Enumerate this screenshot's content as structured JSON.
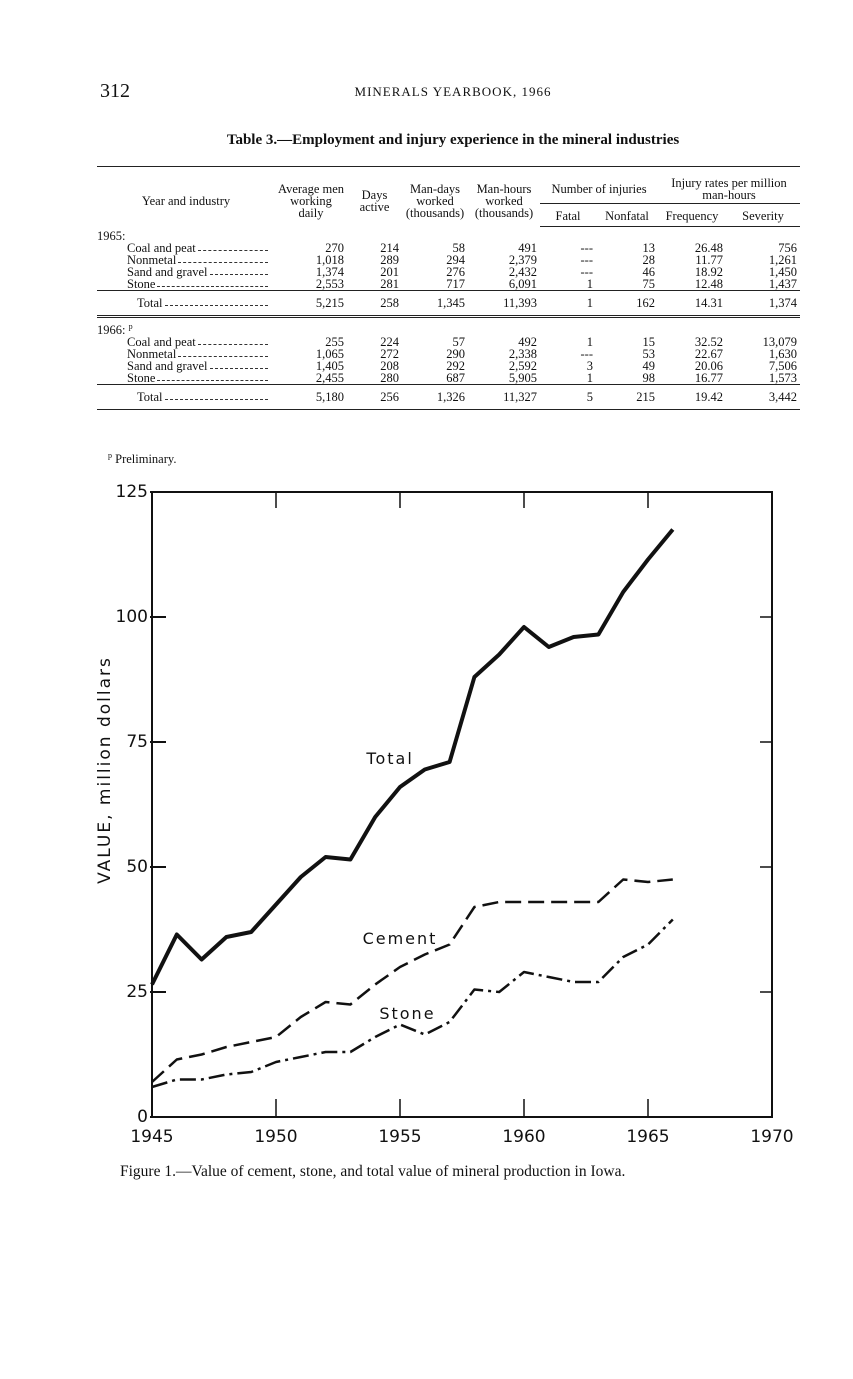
{
  "header": {
    "page_number": "312",
    "running_title": "MINERALS YEARBOOK, 1966"
  },
  "table": {
    "title": "Table 3.—Employment and injury experience in the mineral industries",
    "columns": [
      "Year and industry",
      "Average men working daily",
      "Days active",
      "Man-days worked (thousands)",
      "Man-hours worked (thousands)",
      "Fatal",
      "Nonfatal",
      "Frequency",
      "Severity"
    ],
    "column_groups": [
      "Number of injuries",
      "Injury rates per million man-hours"
    ],
    "sections": [
      {
        "label": "1965:",
        "rows": [
          [
            "Coal and peat",
            "270",
            "214",
            "58",
            "491",
            "---",
            "13",
            "26.48",
            "756"
          ],
          [
            "Nonmetal",
            "1,018",
            "289",
            "294",
            "2,379",
            "---",
            "28",
            "11.77",
            "1,261"
          ],
          [
            "Sand and gravel",
            "1,374",
            "201",
            "276",
            "2,432",
            "---",
            "46",
            "18.92",
            "1,450"
          ],
          [
            "Stone",
            "2,553",
            "281",
            "717",
            "6,091",
            "1",
            "75",
            "12.48",
            "1,437"
          ]
        ],
        "total": [
          "Total",
          "5,215",
          "258",
          "1,345",
          "11,393",
          "1",
          "162",
          "14.31",
          "1,374"
        ]
      },
      {
        "label": "1966:",
        "note_mark": "p",
        "rows": [
          [
            "Coal and peat",
            "255",
            "224",
            "57",
            "492",
            "1",
            "15",
            "32.52",
            "13,079"
          ],
          [
            "Nonmetal",
            "1,065",
            "272",
            "290",
            "2,338",
            "---",
            "53",
            "22.67",
            "1,630"
          ],
          [
            "Sand and gravel",
            "1,405",
            "208",
            "292",
            "2,592",
            "3",
            "49",
            "20.06",
            "7,506"
          ],
          [
            "Stone",
            "2,455",
            "280",
            "687",
            "5,905",
            "1",
            "98",
            "16.77",
            "1,573"
          ]
        ],
        "total": [
          "Total",
          "5,180",
          "256",
          "1,326",
          "11,327",
          "5",
          "215",
          "19.42",
          "3,442"
        ]
      }
    ],
    "footnote": {
      "mark": "p",
      "text": "Preliminary."
    }
  },
  "chart_data": {
    "type": "line",
    "caption": "Figure 1.—Value of cement, stone, and total value of mineral production in Iowa.",
    "y_label": "VALUE, million dollars",
    "x": [
      1945,
      1946,
      1947,
      1948,
      1949,
      1950,
      1951,
      1952,
      1953,
      1954,
      1955,
      1956,
      1957,
      1958,
      1959,
      1960,
      1961,
      1962,
      1963,
      1964,
      1965,
      1966
    ],
    "series": [
      {
        "name": "Total",
        "color": "#111111",
        "style": "solid",
        "values": [
          26.5,
          36.5,
          31.5,
          36,
          37,
          42.5,
          48,
          52,
          51.5,
          60,
          66,
          69.5,
          71,
          88,
          92.5,
          98,
          94,
          96,
          96.5,
          105,
          111.5,
          117.5
        ]
      },
      {
        "name": "Cement",
        "color": "#111111",
        "style": "dashed",
        "values": [
          7,
          11.5,
          12.5,
          14,
          15,
          16,
          20,
          23,
          22.5,
          26.5,
          30,
          32.5,
          34.5,
          42,
          43,
          43,
          43,
          43,
          43,
          47.5,
          47,
          47.5
        ]
      },
      {
        "name": "Stone",
        "color": "#111111",
        "style": "dashdot",
        "values": [
          6,
          7.5,
          7.5,
          8.5,
          9,
          11,
          12,
          13,
          13,
          16,
          18.5,
          16.5,
          19,
          25.5,
          25,
          29,
          28,
          27,
          27,
          32,
          34.5,
          39.5
        ]
      }
    ],
    "xlim": [
      1945,
      1970
    ],
    "xticks": [
      1945,
      1950,
      1955,
      1960,
      1965,
      1970
    ],
    "ylim": [
      0,
      125
    ],
    "yticks": [
      0,
      25,
      50,
      75,
      100,
      125
    ],
    "grid": false
  }
}
